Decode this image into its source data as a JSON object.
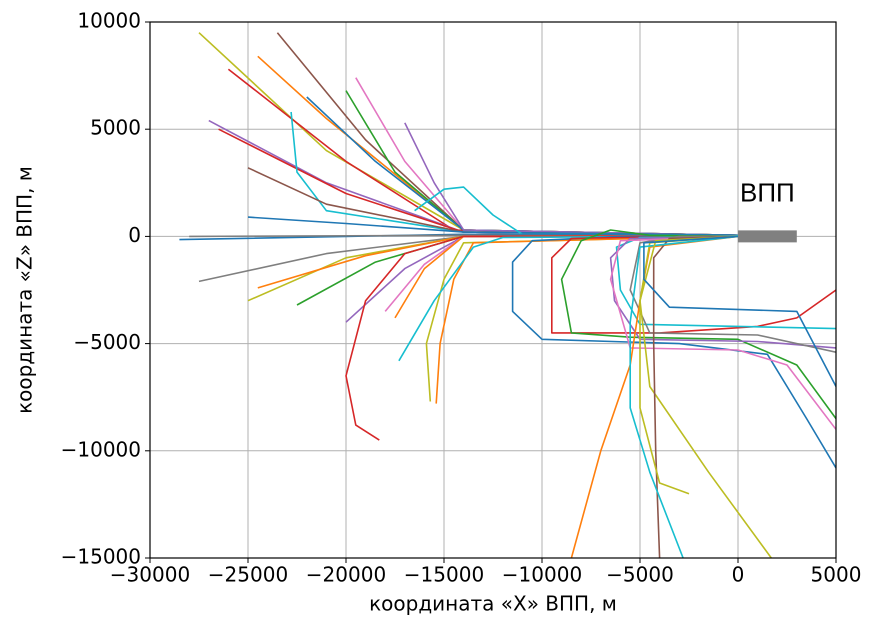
{
  "chart_data": {
    "type": "line",
    "xlabel": "координата «X» ВПП, м",
    "ylabel": "координата «Z» ВПП, м",
    "annotation": "ВПП",
    "xlim": [
      -30000,
      5000
    ],
    "ylim": [
      -15000,
      10000
    ],
    "xticks": [
      {
        "value": -30000,
        "label": "−30000"
      },
      {
        "value": -25000,
        "label": "−25000"
      },
      {
        "value": -20000,
        "label": "−20000"
      },
      {
        "value": -15000,
        "label": "−15000"
      },
      {
        "value": -10000,
        "label": "−10000"
      },
      {
        "value": -5000,
        "label": "−5000"
      },
      0,
      5000
    ],
    "yticks": [
      {
        "value": -15000,
        "label": "−15000"
      },
      {
        "value": -10000,
        "label": "−10000"
      },
      {
        "value": -5000,
        "label": "−5000"
      },
      0,
      5000,
      10000
    ],
    "grid": true,
    "runway": {
      "x": [
        0,
        3000
      ],
      "values": [
        0,
        0
      ],
      "color": "#808080"
    },
    "series": [
      {
        "color": "#bcbd22",
        "x": [
          -27500,
          -21000,
          -14000,
          0
        ],
        "values": [
          9500,
          4000,
          300,
          50
        ]
      },
      {
        "color": "#8c564b",
        "x": [
          -23500,
          -19000,
          -14000,
          0
        ],
        "values": [
          9500,
          4500,
          300,
          50
        ]
      },
      {
        "color": "#d62728",
        "x": [
          -26000,
          -20000,
          -14500,
          0
        ],
        "values": [
          7800,
          3500,
          300,
          50
        ]
      },
      {
        "color": "#ff7f0e",
        "x": [
          -24500,
          -21000,
          -14000,
          0
        ],
        "values": [
          8400,
          5500,
          300,
          50
        ]
      },
      {
        "color": "#9467bd",
        "x": [
          -27000,
          -21000,
          -14000,
          0
        ],
        "values": [
          5400,
          2500,
          200,
          50
        ]
      },
      {
        "color": "#d62728",
        "x": [
          -26500,
          -20000,
          -14000,
          0
        ],
        "values": [
          5000,
          2000,
          200,
          50
        ]
      },
      {
        "color": "#e377c2",
        "x": [
          -19500,
          -17000,
          -14000,
          0
        ],
        "values": [
          7400,
          3500,
          300,
          50
        ]
      },
      {
        "color": "#2ca02c",
        "x": [
          -20000,
          -17500,
          -14000,
          0
        ],
        "values": [
          6800,
          3000,
          300,
          50
        ]
      },
      {
        "color": "#1f77b4",
        "x": [
          -22000,
          -18500,
          -14000,
          0
        ],
        "values": [
          6500,
          3500,
          300,
          50
        ]
      },
      {
        "color": "#9467bd",
        "x": [
          -17000,
          -15500,
          -14000,
          0
        ],
        "values": [
          5300,
          2500,
          300,
          50
        ]
      },
      {
        "color": "#17becf",
        "x": [
          -22800,
          -22500,
          -21000,
          -14000,
          0
        ],
        "values": [
          5800,
          3000,
          1200,
          200,
          50
        ]
      },
      {
        "color": "#8c564b",
        "x": [
          -25000,
          -21000,
          -14000,
          0
        ],
        "values": [
          3200,
          1500,
          200,
          50
        ]
      },
      {
        "color": "#1f77b4",
        "x": [
          -25000,
          -20000,
          -14000,
          0
        ],
        "values": [
          900,
          600,
          200,
          50
        ]
      },
      {
        "color": "#17becf",
        "x": [
          -16500,
          -15000,
          -14000,
          -12500,
          -11000,
          0
        ],
        "values": [
          1200,
          2200,
          2300,
          1000,
          100,
          50
        ]
      },
      {
        "color": "#1f77b4",
        "x": [
          -28500,
          -20000,
          -14000,
          0
        ],
        "values": [
          -150,
          0,
          100,
          50
        ]
      },
      {
        "color": "#7f7f7f",
        "x": [
          -28000,
          -14000,
          0
        ],
        "values": [
          0,
          50,
          20
        ]
      },
      {
        "color": "#7f7f7f",
        "x": [
          -27500,
          -21000,
          -14000,
          0
        ],
        "values": [
          -2100,
          -800,
          0,
          30
        ]
      },
      {
        "color": "#bcbd22",
        "x": [
          -25000,
          -20000,
          -14000,
          0
        ],
        "values": [
          -3000,
          -1000,
          0,
          30
        ]
      },
      {
        "color": "#ff7f0e",
        "x": [
          -24500,
          -19000,
          -14000,
          0
        ],
        "values": [
          -2400,
          -900,
          0,
          30
        ]
      },
      {
        "color": "#2ca02c",
        "x": [
          -22500,
          -18500,
          -14000,
          0
        ],
        "values": [
          -3200,
          -1200,
          0,
          30
        ]
      },
      {
        "color": "#9467bd",
        "x": [
          -20000,
          -17000,
          -14000,
          0
        ],
        "values": [
          -4000,
          -1500,
          0,
          30
        ]
      },
      {
        "color": "#e377c2",
        "x": [
          -18000,
          -16000,
          -14000,
          0
        ],
        "values": [
          -3500,
          -1300,
          0,
          30
        ]
      },
      {
        "color": "#ff7f0e",
        "x": [
          -17500,
          -16000,
          -14000,
          0
        ],
        "values": [
          -3800,
          -1500,
          0,
          30
        ]
      },
      {
        "color": "#d62728",
        "x": [
          -18300,
          -19500,
          -20000,
          -19000,
          -17000,
          -14000,
          0
        ],
        "values": [
          -9500,
          -8800,
          -6500,
          -3000,
          -800,
          0,
          30
        ]
      },
      {
        "color": "#bcbd22",
        "x": [
          -15700,
          -15900,
          -15000,
          -14000,
          0
        ],
        "values": [
          -7700,
          -5000,
          -2000,
          -300,
          30
        ]
      },
      {
        "color": "#ff7f0e",
        "x": [
          -15400,
          -15200,
          -14500,
          -13500,
          0
        ],
        "values": [
          -7800,
          -5000,
          -2000,
          -300,
          30
        ]
      },
      {
        "color": "#17becf",
        "x": [
          -17300,
          -15500,
          -13500,
          -12000,
          0
        ],
        "values": [
          -5800,
          -3000,
          -500,
          -50,
          30
        ]
      },
      {
        "color": "#1f77b4",
        "x": [
          5000,
          3500,
          1500,
          -3000,
          -10000,
          -11500,
          -11500,
          -10500,
          -6000,
          0
        ],
        "values": [
          -10800,
          -8500,
          -5500,
          -5000,
          -4800,
          -3500,
          -1200,
          -200,
          0,
          0
        ]
      },
      {
        "color": "#d62728",
        "x": [
          5000,
          3000,
          1000,
          -4000,
          -9500,
          -9500,
          -9500,
          -8500,
          -3000,
          0
        ],
        "values": [
          -2500,
          -3800,
          -4200,
          -4500,
          -4500,
          -3000,
          -1000,
          -100,
          0,
          0
        ]
      },
      {
        "color": "#2ca02c",
        "x": [
          5000,
          3000,
          0,
          -5500,
          -8500,
          -9000,
          -8000,
          -6500,
          -4500,
          0
        ],
        "values": [
          -8500,
          -6000,
          -4800,
          -4700,
          -4500,
          -2000,
          -200,
          300,
          50,
          0
        ]
      },
      {
        "color": "#17becf",
        "x": [
          5000,
          0,
          -5000,
          -6000,
          -6200,
          -5000,
          0
        ],
        "values": [
          -4300,
          -4200,
          -4100,
          -2500,
          -500,
          -50,
          0
        ]
      },
      {
        "color": "#9467bd",
        "x": [
          5000,
          1000,
          -5000,
          -6300,
          -6500,
          -5500,
          0
        ],
        "values": [
          -5200,
          -4900,
          -4800,
          -3000,
          -1000,
          -100,
          0
        ]
      },
      {
        "color": "#7f7f7f",
        "x": [
          5000,
          1000,
          -4500,
          -5500,
          -5000,
          -3000,
          0
        ],
        "values": [
          -5400,
          -4600,
          -4500,
          -2500,
          -300,
          0,
          0
        ]
      },
      {
        "color": "#e377c2",
        "x": [
          5000,
          2500,
          0,
          -5500,
          -6500,
          -6000,
          0
        ],
        "values": [
          -9000,
          -6000,
          -5300,
          -5200,
          -2000,
          -200,
          0
        ]
      },
      {
        "color": "#ff7f0e",
        "x": [
          -8500,
          -7000,
          -5500,
          -5000,
          -4500,
          0
        ],
        "values": [
          -15000,
          -10000,
          -6000,
          -3000,
          -500,
          0
        ]
      },
      {
        "color": "#bcbd22",
        "x": [
          1700,
          -1500,
          -4500,
          -5000,
          -4500,
          0
        ],
        "values": [
          -15000,
          -11000,
          -7000,
          -3000,
          -300,
          0
        ]
      },
      {
        "color": "#8c564b",
        "x": [
          -4000,
          -4200,
          -4300,
          -4300,
          -3500,
          0
        ],
        "values": [
          -15000,
          -10000,
          -5000,
          -1000,
          -100,
          0
        ]
      },
      {
        "color": "#17becf",
        "x": [
          -2800,
          -4500,
          -5500,
          -5500,
          -5000,
          0
        ],
        "values": [
          -15000,
          -11000,
          -8000,
          -4000,
          -500,
          0
        ]
      },
      {
        "color": "#bcbd22",
        "x": [
          -2500,
          -4000,
          -5000,
          -5000,
          -4200,
          0
        ],
        "values": [
          -12000,
          -11500,
          -8000,
          -3000,
          -200,
          0
        ]
      },
      {
        "color": "#1f77b4",
        "x": [
          5000,
          3000,
          -3500,
          -4800,
          -4800,
          0
        ],
        "values": [
          -7000,
          -3500,
          -3300,
          -2000,
          -300,
          0
        ]
      }
    ]
  }
}
